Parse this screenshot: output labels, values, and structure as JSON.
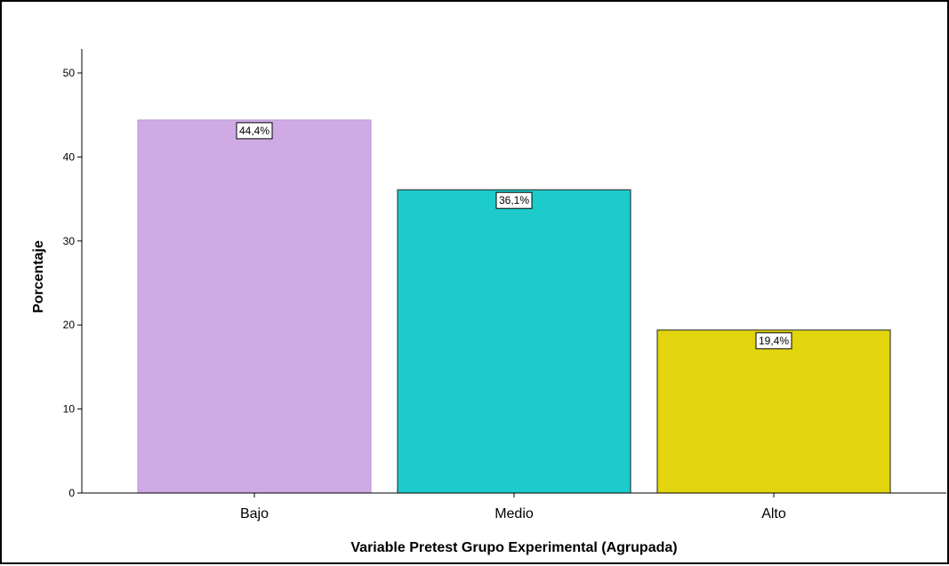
{
  "chart_data": {
    "type": "bar",
    "categories": [
      "Bajo",
      "Medio",
      "Alto"
    ],
    "values": [
      44.4,
      36.1,
      19.4
    ],
    "data_labels": [
      "44,4%",
      "36,1%",
      "19,4%"
    ],
    "colors": [
      "#cfaae4",
      "#1ecbcc",
      "#e2d50d"
    ],
    "xlabel": "Variable Pretest Grupo Experimental (Agrupada)",
    "ylabel": "Porcentaje",
    "ylim": [
      0,
      50
    ],
    "yticks": [
      0,
      10,
      20,
      30,
      40,
      50
    ],
    "grid": false,
    "legend": "none"
  }
}
